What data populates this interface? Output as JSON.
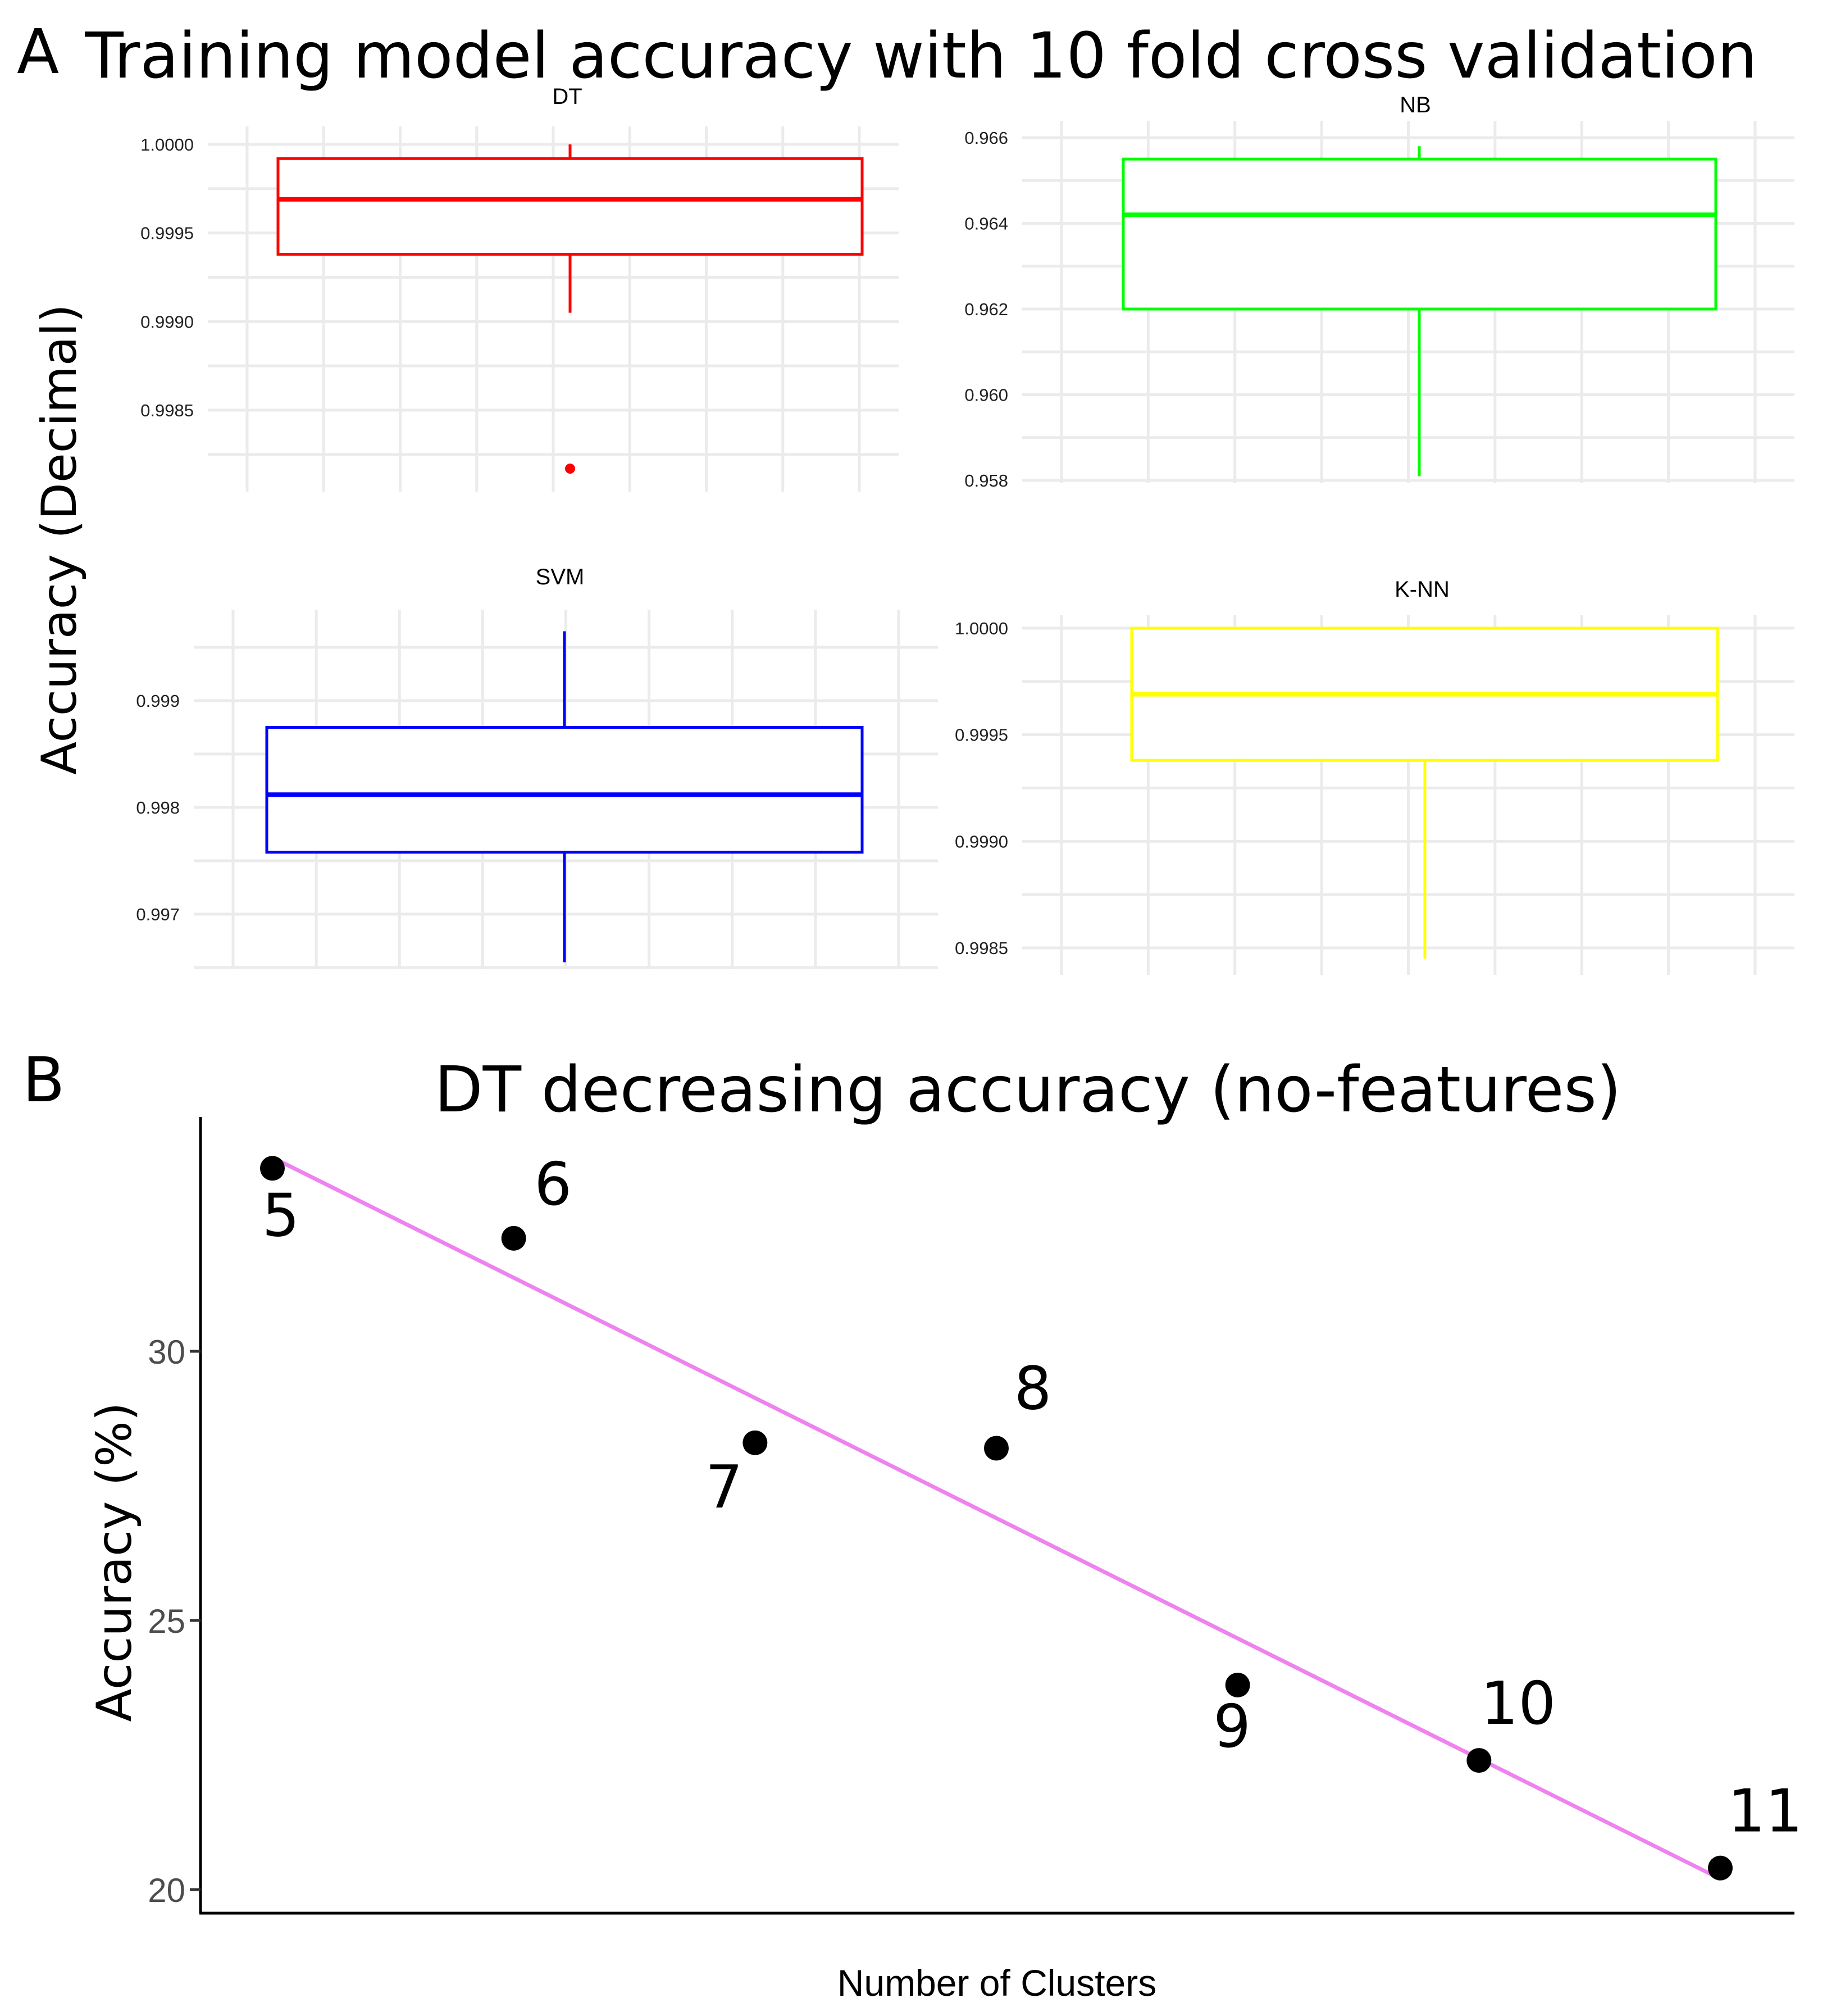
{
  "panel_a": {
    "letter": "A",
    "title": "Training model accuracy with 10 fold cross validation",
    "ylabel": "Accuracy (Decimal)"
  },
  "panel_b": {
    "letter": "B"
  },
  "colors": {
    "DT": "#ff0000",
    "NB": "#00ff00",
    "SVM": "#0000ff",
    "KNN": "#ffff00",
    "trend": "#ee82ee",
    "points": "#000000",
    "grid": "#ebebeb"
  },
  "chart_data": [
    {
      "type": "box",
      "title": "DT",
      "ylim": [
        0.99805,
        1.00005
      ],
      "yticks": [
        1.0,
        0.9995,
        0.999,
        0.9985
      ],
      "ytick_labels": [
        "1.0000",
        "0.9995",
        "0.9990",
        "0.9985"
      ],
      "box": {
        "min": 0.99905,
        "q1": 0.99938,
        "median": 0.99969,
        "q3": 0.99992,
        "max": 1.0
      },
      "outliers": [
        0.99817
      ],
      "grid": true
    },
    {
      "type": "box",
      "title": "NB",
      "ylim": [
        0.9579,
        0.9662
      ],
      "yticks": [
        0.966,
        0.964,
        0.962,
        0.96,
        0.958
      ],
      "ytick_labels": [
        "0.966",
        "0.964",
        "0.962",
        "0.960",
        "0.958"
      ],
      "box": {
        "min": 0.9581,
        "q1": 0.962,
        "median": 0.9642,
        "q3": 0.9655,
        "max": 0.9658
      },
      "outliers": [],
      "grid": true
    },
    {
      "type": "box",
      "title": "SVM",
      "ylim": [
        0.99645,
        0.9997
      ],
      "yticks": [
        0.999,
        0.998,
        0.997
      ],
      "ytick_labels": [
        "0.999",
        "0.998",
        "0.997"
      ],
      "box": {
        "min": 0.99655,
        "q1": 0.99758,
        "median": 0.99812,
        "q3": 0.99875,
        "max": 0.99965
      },
      "outliers": [],
      "grid": true
    },
    {
      "type": "box",
      "title": "K-NN",
      "ylim": [
        0.99838,
        1.00003
      ],
      "yticks": [
        1.0,
        0.9995,
        0.999,
        0.9985
      ],
      "ytick_labels": [
        "1.0000",
        "0.9995",
        "0.9990",
        "0.9985"
      ],
      "box": {
        "min": 0.99845,
        "q1": 0.99938,
        "median": 0.99969,
        "q3": 1.0,
        "max": 1.0
      },
      "outliers": [],
      "grid": true
    },
    {
      "type": "scatter",
      "title": "DT decreasing accuracy (no-features)",
      "xlabel": "Number of Clusters",
      "ylabel": "Accuracy (%)",
      "x": [
        5,
        6,
        7,
        8,
        9,
        10,
        11
      ],
      "y": [
        33.4,
        32.1,
        28.3,
        28.2,
        23.8,
        22.4,
        20.4
      ],
      "point_labels": [
        "5",
        "6",
        "7",
        "8",
        "9",
        "10",
        "11"
      ],
      "trendline": {
        "type": "linear",
        "x": [
          5,
          11
        ],
        "y": [
          33.6,
          20.2
        ]
      },
      "xlim": [
        4.75,
        11.3
      ],
      "ylim": [
        19.5,
        34.5
      ],
      "yticks": [
        20,
        25,
        30
      ],
      "ytick_labels": [
        "20",
        "25",
        "30"
      ],
      "grid": false
    }
  ]
}
